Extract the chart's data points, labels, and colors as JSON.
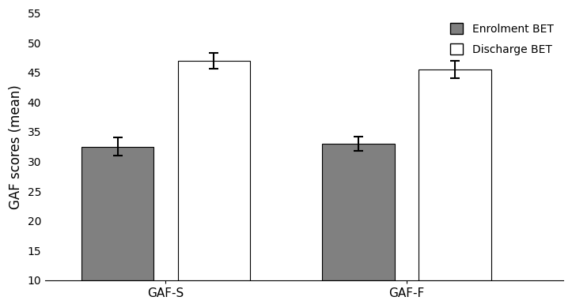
{
  "categories": [
    "GAF-S",
    "GAF-F"
  ],
  "enrolment_values": [
    32.5,
    33.0
  ],
  "discharge_values": [
    47.0,
    45.5
  ],
  "enrolment_errors": [
    1.5,
    1.2
  ],
  "discharge_errors": [
    1.3,
    1.4
  ],
  "enrolment_color": "#808080",
  "discharge_color": "#ffffff",
  "enrolment_label": "Enrolment BET",
  "discharge_label": "Discharge BET",
  "ylabel": "GAF scores (mean)",
  "ylim_min": 10,
  "ylim_max": 55,
  "yticks": [
    10,
    15,
    20,
    25,
    30,
    35,
    40,
    45,
    50,
    55
  ],
  "bar_width": 0.3,
  "group_positions": [
    1.0,
    2.0
  ],
  "legend_fontsize": 10,
  "axis_fontsize": 12,
  "tick_fontsize": 10,
  "edgecolor": "#000000",
  "error_capsize": 4,
  "error_linewidth": 1.5,
  "error_color": "black",
  "bar_gap": 0.05
}
